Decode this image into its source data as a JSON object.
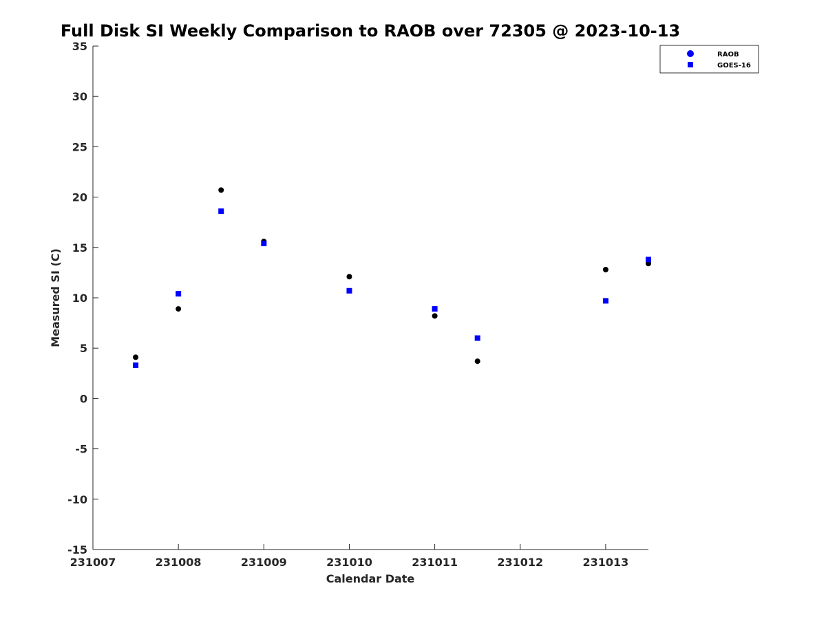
{
  "chart_data": {
    "type": "scatter",
    "title": "Full Disk SI Weekly Comparison to RAOB over 72305 @ 2023-10-13",
    "xlabel": "Calendar Date",
    "ylabel": "Measured SI (C)",
    "xlim": [
      231007,
      231013.5
    ],
    "ylim": [
      -15,
      35
    ],
    "x_ticks": [
      231007,
      231008,
      231009,
      231010,
      231011,
      231012,
      231013
    ],
    "x_tick_labels": [
      "231007",
      "231008",
      "231009",
      "231010",
      "231011",
      "231012",
      "231013"
    ],
    "y_ticks": [
      -15,
      -10,
      -5,
      0,
      5,
      10,
      15,
      20,
      25,
      30,
      35
    ],
    "y_tick_labels": [
      "-15",
      "-10",
      "-5",
      "0",
      "5",
      "10",
      "15",
      "20",
      "25",
      "30",
      "35"
    ],
    "grid": false,
    "legend_position": "top-right",
    "legend": [
      "RAOB",
      "GOES-16"
    ],
    "series": [
      {
        "name": "RAOB",
        "marker": "circle",
        "color": "#000000",
        "legend_color": "#0000ff",
        "x": [
          231007.5,
          231008,
          231008.5,
          231009,
          231010,
          231011,
          231011.5,
          231013,
          231013.5
        ],
        "y": [
          4.1,
          8.9,
          20.7,
          15.6,
          12.1,
          8.2,
          3.7,
          12.8,
          13.4
        ]
      },
      {
        "name": "GOES-16",
        "marker": "square",
        "color": "#0000ff",
        "legend_color": "#0000ff",
        "x": [
          231007.5,
          231008,
          231008.5,
          231009,
          231010,
          231011,
          231011.5,
          231013,
          231013.5
        ],
        "y": [
          3.3,
          10.4,
          18.6,
          15.4,
          10.7,
          8.9,
          6.0,
          9.7,
          13.8
        ]
      }
    ]
  }
}
